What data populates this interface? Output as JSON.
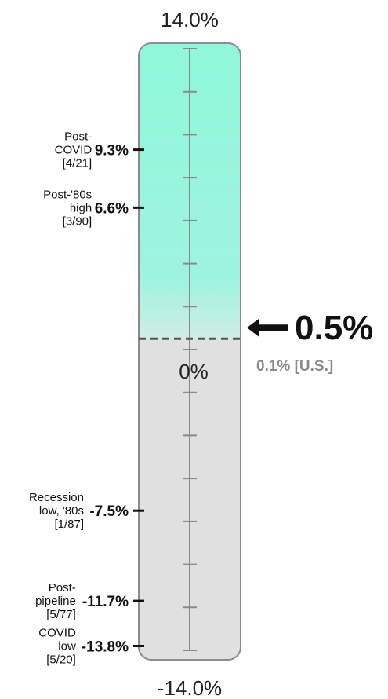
{
  "chart_data": {
    "type": "gauge",
    "min": -14.0,
    "max": 14.0,
    "min_label": "-14.0%",
    "max_label": "14.0%",
    "zero_label": "0%",
    "current": {
      "value": 0.5,
      "label": "0.5%"
    },
    "us_reference": {
      "value": 0.1,
      "label": "0.1% [U.S.]"
    },
    "colors": {
      "positive": "#99f5df",
      "negative": "#e0e0e0",
      "axis": "#8a8a8a",
      "arrow": "#111111"
    },
    "markers": [
      {
        "value": 9.3,
        "label": "9.3%",
        "note": [
          "Post-",
          "COVID",
          "[4/21]"
        ]
      },
      {
        "value": 6.6,
        "label": "6.6%",
        "note": [
          "Post-'80s",
          "high",
          "[3/90]"
        ]
      },
      {
        "value": -7.5,
        "label": "-7.5%",
        "note": [
          "Recession",
          "low, '80s",
          "[1/87]"
        ]
      },
      {
        "value": -11.7,
        "label": "-11.7%",
        "note": [
          "Post-",
          "pipeline",
          "[5/77]"
        ]
      },
      {
        "value": -13.8,
        "label": "-13.8%",
        "note": [
          "COVID",
          "low",
          "[5/20]"
        ]
      }
    ]
  }
}
